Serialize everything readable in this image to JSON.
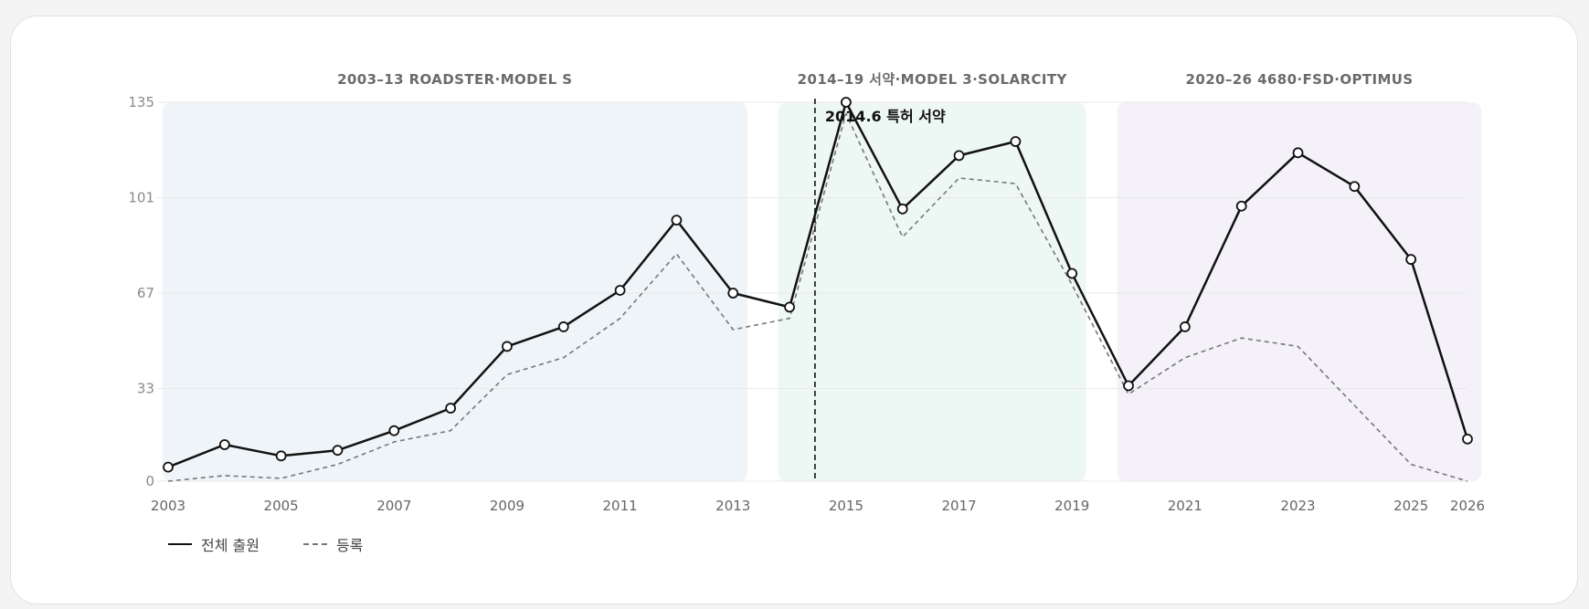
{
  "chart_data": {
    "type": "line",
    "x": [
      2003,
      2004,
      2005,
      2006,
      2007,
      2008,
      2009,
      2010,
      2011,
      2012,
      2013,
      2014,
      2015,
      2016,
      2017,
      2018,
      2019,
      2020,
      2021,
      2022,
      2023,
      2024,
      2025,
      2026
    ],
    "series": [
      {
        "name": "전체 출원",
        "style": "solid",
        "color": "#111111",
        "markers": true,
        "values": [
          5,
          13,
          9,
          11,
          18,
          26,
          48,
          55,
          68,
          93,
          67,
          62,
          135,
          97,
          116,
          121,
          74,
          34,
          55,
          98,
          117,
          105,
          79,
          15
        ]
      },
      {
        "name": "등록",
        "style": "dashed",
        "color": "#777777",
        "markers": false,
        "values": [
          0,
          2,
          1,
          6,
          14,
          18,
          38,
          44,
          58,
          81,
          54,
          58,
          131,
          87,
          108,
          106,
          70,
          31,
          44,
          51,
          48,
          27,
          6,
          0
        ]
      }
    ],
    "yticks": [
      0,
      33,
      67,
      101,
      135
    ],
    "xticks": [
      2003,
      2005,
      2007,
      2009,
      2011,
      2013,
      2015,
      2017,
      2019,
      2021,
      2023,
      2025,
      2026
    ],
    "ylim": [
      0,
      135
    ],
    "grid": "horizontal",
    "periods": [
      {
        "label": "2003–13 ROADSTER·MODEL S",
        "start": 2002.9,
        "end": 2013.25,
        "color": "#eef4f8"
      },
      {
        "label": "2014–19 서약·MODEL 3·SOLARCITY",
        "start": 2013.8,
        "end": 2019.25,
        "color": "#edf7f4"
      },
      {
        "label": "2020–26 4680·FSD·OPTIMUS",
        "start": 2019.8,
        "end": 2026.25,
        "color": "#f4f2f8"
      }
    ],
    "annotation": {
      "x": 2014.45,
      "label": "2014.6 특허 서약"
    },
    "legend_position": "bottom-left"
  }
}
